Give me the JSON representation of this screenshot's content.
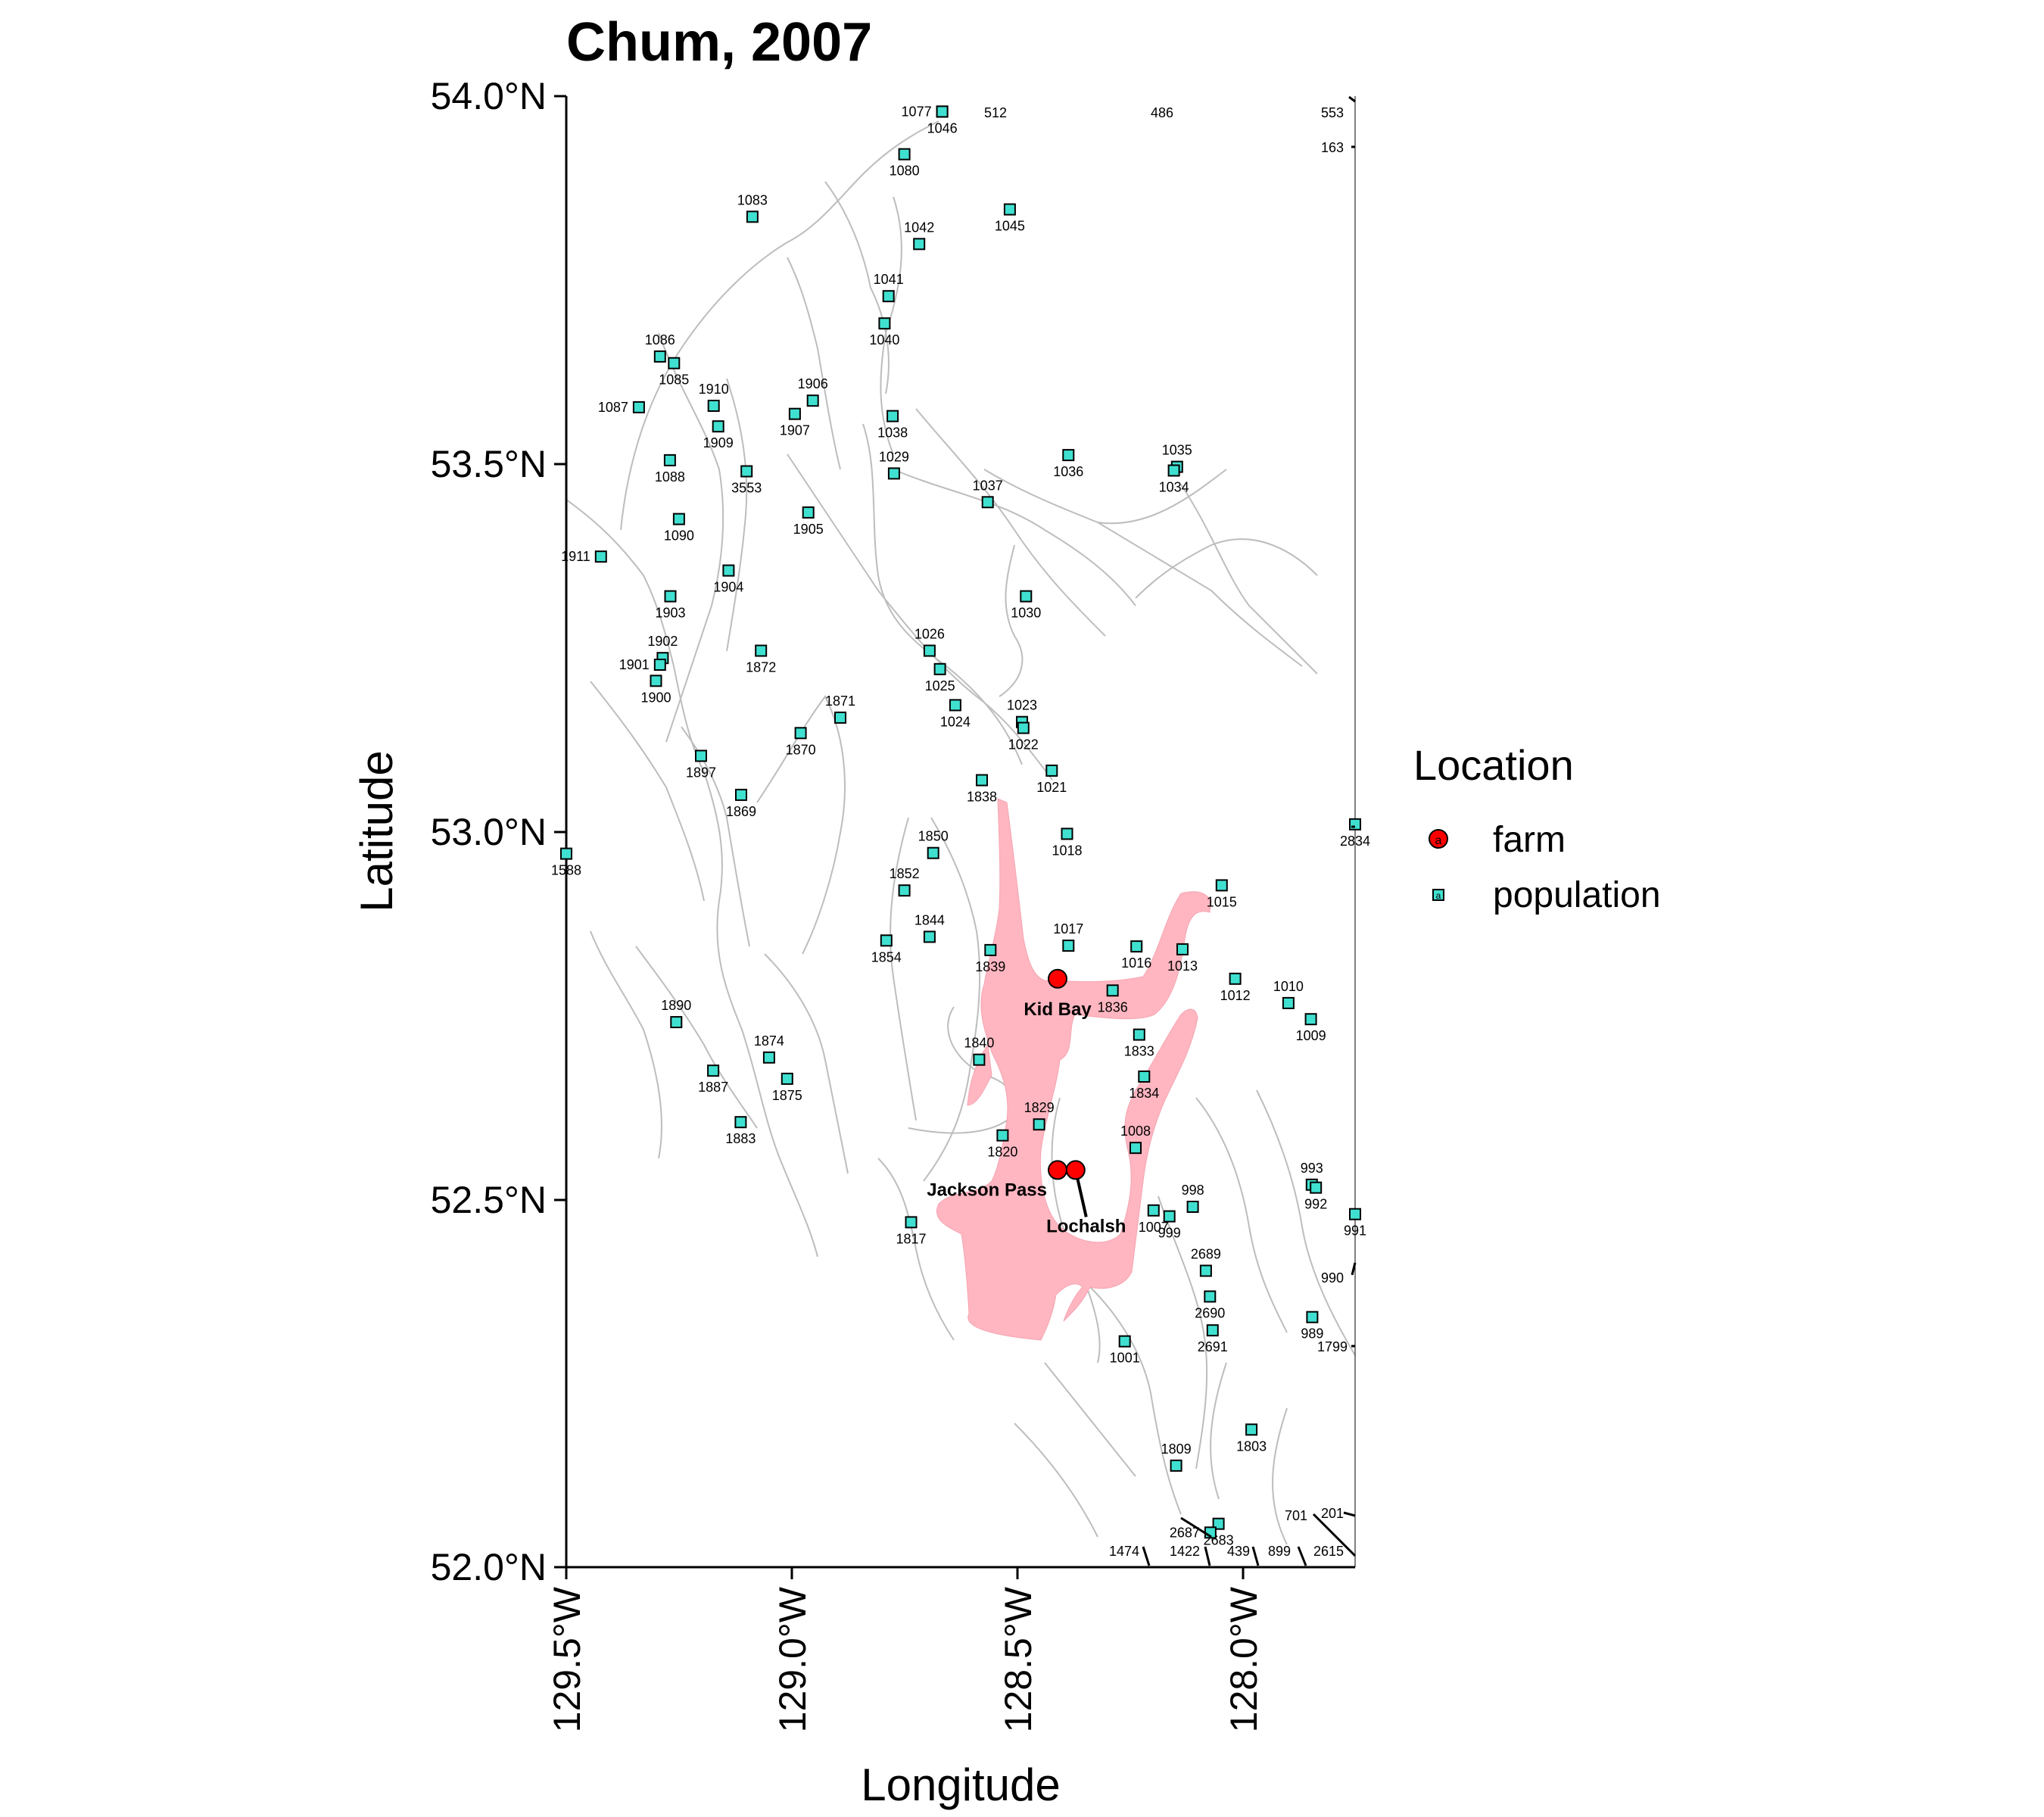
{
  "title": "Chum, 2007",
  "axes": {
    "x_label": "Longitude",
    "y_label": "Latitude",
    "x_ticks": [
      {
        "value": -129.5,
        "label": "129.5°W"
      },
      {
        "value": -129.0,
        "label": "129.0°W"
      },
      {
        "value": -128.5,
        "label": "128.5°W"
      },
      {
        "value": -128.0,
        "label": "128.0°W"
      }
    ],
    "y_ticks": [
      {
        "value": 54.0,
        "label": "54.0°N"
      },
      {
        "value": 53.5,
        "label": "53.5°N"
      },
      {
        "value": 53.0,
        "label": "53.0°N"
      },
      {
        "value": 52.5,
        "label": "52.5°N"
      },
      {
        "value": 52.0,
        "label": "52.0°N"
      }
    ],
    "xlim": [
      -129.5,
      -127.75
    ],
    "ylim": [
      52.0,
      54.0
    ]
  },
  "legend": {
    "title": "Location",
    "items": [
      {
        "key": "farm",
        "label": "farm",
        "glyph": "a"
      },
      {
        "key": "population",
        "label": "population",
        "glyph": "a"
      }
    ]
  },
  "colors": {
    "farm": "#ff0000",
    "population": "#40e0d0",
    "channel": "#ffb6c1",
    "coastline": "#bdbdbd"
  },
  "farms": [
    {
      "name": "Kid Bay",
      "lon": -128.41,
      "lat": 52.8
    },
    {
      "name": "Jackson Pass",
      "lon": -128.41,
      "lat": 52.54
    },
    {
      "name": "Lochalsh",
      "lon": -128.37,
      "lat": 52.54
    }
  ],
  "populations": [
    {
      "id": "1077",
      "lon": -128.666,
      "lat": 53.979
    },
    {
      "id": "1046",
      "lon": -128.666,
      "lat": 53.979
    },
    {
      "id": "1080",
      "lon": -128.75,
      "lat": 53.921
    },
    {
      "id": "1045",
      "lon": -128.516,
      "lat": 53.846
    },
    {
      "id": "1083",
      "lon": -129.087,
      "lat": 53.836
    },
    {
      "id": "1042",
      "lon": -128.717,
      "lat": 53.799
    },
    {
      "id": "1041",
      "lon": -128.785,
      "lat": 53.728
    },
    {
      "id": "1040",
      "lon": -128.794,
      "lat": 53.691
    },
    {
      "id": "1086",
      "lon": -129.292,
      "lat": 53.646
    },
    {
      "id": "1085",
      "lon": -129.261,
      "lat": 53.637
    },
    {
      "id": "1087",
      "lon": -129.339,
      "lat": 53.577
    },
    {
      "id": "1910",
      "lon": -129.173,
      "lat": 53.579
    },
    {
      "id": "1906",
      "lon": -128.953,
      "lat": 53.586
    },
    {
      "id": "1907",
      "lon": -128.993,
      "lat": 53.568
    },
    {
      "id": "1909",
      "lon": -129.163,
      "lat": 53.551
    },
    {
      "id": "1038",
      "lon": -128.776,
      "lat": 53.565
    },
    {
      "id": "1088",
      "lon": -129.27,
      "lat": 53.505
    },
    {
      "id": "1036",
      "lon": -128.386,
      "lat": 53.512
    },
    {
      "id": "1035",
      "lon": -128.145,
      "lat": 53.496
    },
    {
      "id": "1034",
      "lon": -128.152,
      "lat": 53.491
    },
    {
      "id": "1029",
      "lon": -128.773,
      "lat": 53.487
    },
    {
      "id": "3553",
      "lon": -129.1,
      "lat": 53.49
    },
    {
      "id": "1037",
      "lon": -128.565,
      "lat": 53.448
    },
    {
      "id": "1905",
      "lon": -128.963,
      "lat": 53.434
    },
    {
      "id": "1090",
      "lon": -129.25,
      "lat": 53.425
    },
    {
      "id": "1911",
      "lon": -129.423,
      "lat": 53.374
    },
    {
      "id": "1904",
      "lon": -129.14,
      "lat": 53.355
    },
    {
      "id": "1903",
      "lon": -129.269,
      "lat": 53.32
    },
    {
      "id": "1030",
      "lon": -128.48,
      "lat": 53.32
    },
    {
      "id": "1026",
      "lon": -128.694,
      "lat": 53.246
    },
    {
      "id": "1872",
      "lon": -129.068,
      "lat": 53.246
    },
    {
      "id": "1902",
      "lon": -129.286,
      "lat": 53.236
    },
    {
      "id": "1901",
      "lon": -129.292,
      "lat": 53.227
    },
    {
      "id": "1025",
      "lon": -128.671,
      "lat": 53.221
    },
    {
      "id": "1900",
      "lon": -129.301,
      "lat": 53.205
    },
    {
      "id": "1871",
      "lon": -128.892,
      "lat": 53.155
    },
    {
      "id": "1024",
      "lon": -128.637,
      "lat": 53.172
    },
    {
      "id": "1023",
      "lon": -128.489,
      "lat": 53.149
    },
    {
      "id": "1022",
      "lon": -128.486,
      "lat": 53.141
    },
    {
      "id": "1870",
      "lon": -128.98,
      "lat": 53.134
    },
    {
      "id": "1897",
      "lon": -129.201,
      "lat": 53.103
    },
    {
      "id": "1021",
      "lon": -128.423,
      "lat": 53.083
    },
    {
      "id": "1838",
      "lon": -128.578,
      "lat": 53.07
    },
    {
      "id": "1869",
      "lon": -129.112,
      "lat": 53.05
    },
    {
      "id": "1018",
      "lon": -128.389,
      "lat": 52.997
    },
    {
      "id": "1850",
      "lon": -128.686,
      "lat": 52.971
    },
    {
      "id": "1588",
      "lon": -129.5,
      "lat": 52.97
    },
    {
      "id": "2834",
      "lon": -127.75,
      "lat": 53.01
    },
    {
      "id": "1015",
      "lon": -128.046,
      "lat": 52.927
    },
    {
      "id": "1852",
      "lon": -128.75,
      "lat": 52.92
    },
    {
      "id": "1844",
      "lon": -128.694,
      "lat": 52.857
    },
    {
      "id": "1854",
      "lon": -128.79,
      "lat": 52.852
    },
    {
      "id": "1017",
      "lon": -128.386,
      "lat": 52.845
    },
    {
      "id": "1839",
      "lon": -128.559,
      "lat": 52.839
    },
    {
      "id": "1013",
      "lon": -128.133,
      "lat": 52.84
    },
    {
      "id": "1016",
      "lon": -128.235,
      "lat": 52.844
    },
    {
      "id": "1012",
      "lon": -128.016,
      "lat": 52.8
    },
    {
      "id": "1836",
      "lon": -128.288,
      "lat": 52.784
    },
    {
      "id": "1010",
      "lon": -127.898,
      "lat": 52.767
    },
    {
      "id": "1009",
      "lon": -127.848,
      "lat": 52.745
    },
    {
      "id": "1890",
      "lon": -129.256,
      "lat": 52.741
    },
    {
      "id": "1833",
      "lon": -128.229,
      "lat": 52.724
    },
    {
      "id": "1874",
      "lon": -129.05,
      "lat": 52.693
    },
    {
      "id": "1840",
      "lon": -128.584,
      "lat": 52.69
    },
    {
      "id": "1887",
      "lon": -129.174,
      "lat": 52.675
    },
    {
      "id": "1834",
      "lon": -128.218,
      "lat": 52.667
    },
    {
      "id": "1875",
      "lon": -129.01,
      "lat": 52.664
    },
    {
      "id": "1829",
      "lon": -128.451,
      "lat": 52.602
    },
    {
      "id": "1883",
      "lon": -129.113,
      "lat": 52.605
    },
    {
      "id": "1820",
      "lon": -128.532,
      "lat": 52.587
    },
    {
      "id": "1008",
      "lon": -128.237,
      "lat": 52.57
    },
    {
      "id": "993",
      "lon": -127.846,
      "lat": 52.52
    },
    {
      "id": "992",
      "lon": -127.837,
      "lat": 52.516
    },
    {
      "id": "998",
      "lon": -128.11,
      "lat": 52.49
    },
    {
      "id": "1007",
      "lon": -128.197,
      "lat": 52.485
    },
    {
      "id": "999",
      "lon": -128.162,
      "lat": 52.477
    },
    {
      "id": "991",
      "lon": -127.75,
      "lat": 52.48
    },
    {
      "id": "1817",
      "lon": -128.735,
      "lat": 52.469
    },
    {
      "id": "2689",
      "lon": -128.081,
      "lat": 52.403
    },
    {
      "id": "2690",
      "lon": -128.072,
      "lat": 52.368
    },
    {
      "id": "989",
      "lon": -127.845,
      "lat": 52.34
    },
    {
      "id": "2691",
      "lon": -128.066,
      "lat": 52.322
    },
    {
      "id": "1001",
      "lon": -128.261,
      "lat": 52.307
    },
    {
      "id": "1803",
      "lon": -127.98,
      "lat": 52.187
    },
    {
      "id": "1809",
      "lon": -128.147,
      "lat": 52.138
    },
    {
      "id": "2683",
      "lon": -128.053,
      "lat": 52.059
    },
    {
      "id": "2687",
      "lon": -128.071,
      "lat": 52.047
    }
  ],
  "edge_labels": [
    "512",
    "486",
    "553",
    "163",
    "1799",
    "990",
    "701",
    "201",
    "2615",
    "899",
    "439",
    "1422",
    "1474"
  ]
}
